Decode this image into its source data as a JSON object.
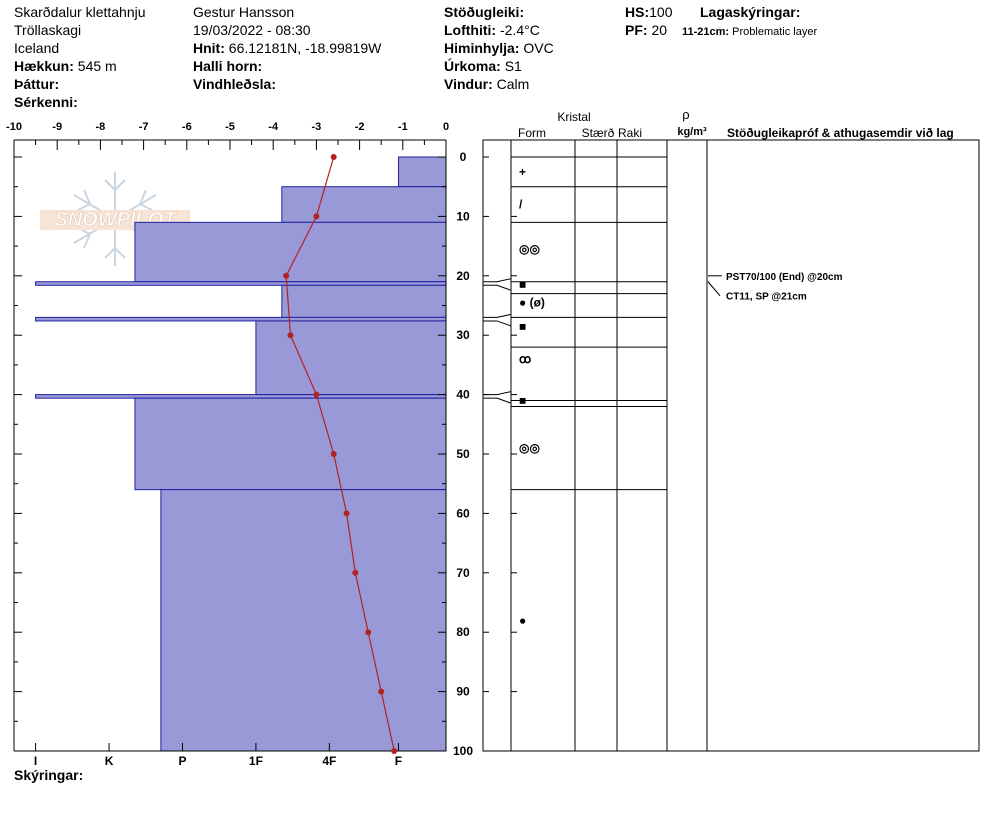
{
  "header": {
    "location": "Skarðdalur  klettahnju",
    "region": "Tröllaskagi",
    "country": "Iceland",
    "elevation_label": "Hækkun:",
    "elevation_value": "545 m",
    "aspect_label": "Þáttur:",
    "special_label": "Sérkenni:",
    "observer": "Gestur Hansson",
    "datetime": "19/03/2022 - 08:30",
    "coords_label": "Hnit:",
    "coords_value": "66.12181N, -18.99819W",
    "slope_label": "Halli horn:",
    "wind_loading_label": "Vindhleðsla:",
    "stability_label": "Stöðugleiki:",
    "air_temp_label": "Lofthiti:",
    "air_temp_value": "-2.4°C",
    "sky_label": "Himinhylja:",
    "sky_value": "OVC",
    "precip_label": "Úrkoma:",
    "precip_value": "S1",
    "wind_label": "Vindur:",
    "wind_value": "Calm",
    "hs_label": "HS:",
    "hs_value": "100",
    "pf_label": "PF:",
    "pf_value": "20",
    "layer_notes_label": "Lagaskýringar:",
    "layer_note_range": "11-21cm:",
    "layer_note_text": "Problematic layer"
  },
  "footer": {
    "notes_label": "Skýringar:"
  },
  "watermark": "SNOWPILOT",
  "columns": {
    "crystal": "Kristal",
    "form": "Form",
    "size": "Stærð",
    "moisture": "Raki",
    "rho": "ρ",
    "density_unit": "kg/m³",
    "stability_header": "Stöðugleikapróf & athugasemdir við lag"
  },
  "colors": {
    "hardness_fill": "#9999d8",
    "hardness_stroke": "#2020a0",
    "temp_line": "#b22222"
  },
  "chart_data": {
    "type": "area",
    "temp_axis_ticks": [
      "-10",
      "-9",
      "-8",
      "-7",
      "-6",
      "-5",
      "-4",
      "-3",
      "-2",
      "-1",
      "0"
    ],
    "temp_range": [
      -10,
      0
    ],
    "depth_ticks": [
      "0",
      "10",
      "20",
      "30",
      "40",
      "50",
      "60",
      "70",
      "80",
      "90",
      "100"
    ],
    "depth_range": [
      0,
      100
    ],
    "hardness_ticks": [
      "I",
      "K",
      "P",
      "1F",
      "4F",
      "F"
    ],
    "hardness_scale": [
      {
        "label": "I",
        "value": -9.5
      },
      {
        "label": "K",
        "value": -7.8
      },
      {
        "label": "P",
        "value": -6.1
      },
      {
        "label": "1F",
        "value": -4.4
      },
      {
        "label": "4F",
        "value": -2.7
      },
      {
        "label": "F",
        "value": -1.1
      }
    ],
    "hardness_layers": [
      {
        "top": 0,
        "bottom": 5,
        "value": -1.1
      },
      {
        "top": 5,
        "bottom": 11,
        "value": -3.8
      },
      {
        "top": 11,
        "bottom": 21,
        "value": -7.2
      },
      {
        "top": 21,
        "bottom": 21.6,
        "value": -9.5
      },
      {
        "top": 21.6,
        "bottom": 27,
        "value": -3.8
      },
      {
        "top": 27,
        "bottom": 27.6,
        "value": -9.5
      },
      {
        "top": 27.6,
        "bottom": 40,
        "value": -4.4
      },
      {
        "top": 40,
        "bottom": 40.6,
        "value": -9.5
      },
      {
        "top": 40.6,
        "bottom": 56,
        "value": -7.2
      },
      {
        "top": 56,
        "bottom": 100,
        "value": -6.6
      }
    ],
    "temperature_profile": [
      {
        "depth": 0,
        "temp": -2.6
      },
      {
        "depth": 10,
        "temp": -3.0
      },
      {
        "depth": 20,
        "temp": -3.7
      },
      {
        "depth": 30,
        "temp": -3.6
      },
      {
        "depth": 40,
        "temp": -3.0
      },
      {
        "depth": 50,
        "temp": -2.6
      },
      {
        "depth": 60,
        "temp": -2.3
      },
      {
        "depth": 70,
        "temp": -2.1
      },
      {
        "depth": 80,
        "temp": -1.8
      },
      {
        "depth": 90,
        "temp": -1.5
      },
      {
        "depth": 100,
        "temp": -1.2
      }
    ],
    "layer_boundaries": [
      0,
      5,
      11,
      21,
      23,
      27,
      32,
      41,
      42,
      56
    ],
    "crystal_symbols": [
      {
        "depth": 2.5,
        "symbol": "+"
      },
      {
        "depth": 8,
        "symbol": "/"
      },
      {
        "depth": 15.5,
        "symbol": "◎◎"
      },
      {
        "depth": 21.5,
        "symbol": "■"
      },
      {
        "depth": 24.5,
        "symbol": "● (ø)"
      },
      {
        "depth": 28.5,
        "symbol": "■"
      },
      {
        "depth": 34,
        "symbol": "ꝏ"
      },
      {
        "depth": 41,
        "symbol": "■"
      },
      {
        "depth": 49,
        "symbol": "◎◎"
      },
      {
        "depth": 78,
        "symbol": "●"
      }
    ],
    "stability_tests": [
      {
        "depth": 20,
        "label": "PST70/100 (End) @20cm"
      },
      {
        "depth": 21,
        "label": "CT11, SP @21cm"
      }
    ]
  }
}
